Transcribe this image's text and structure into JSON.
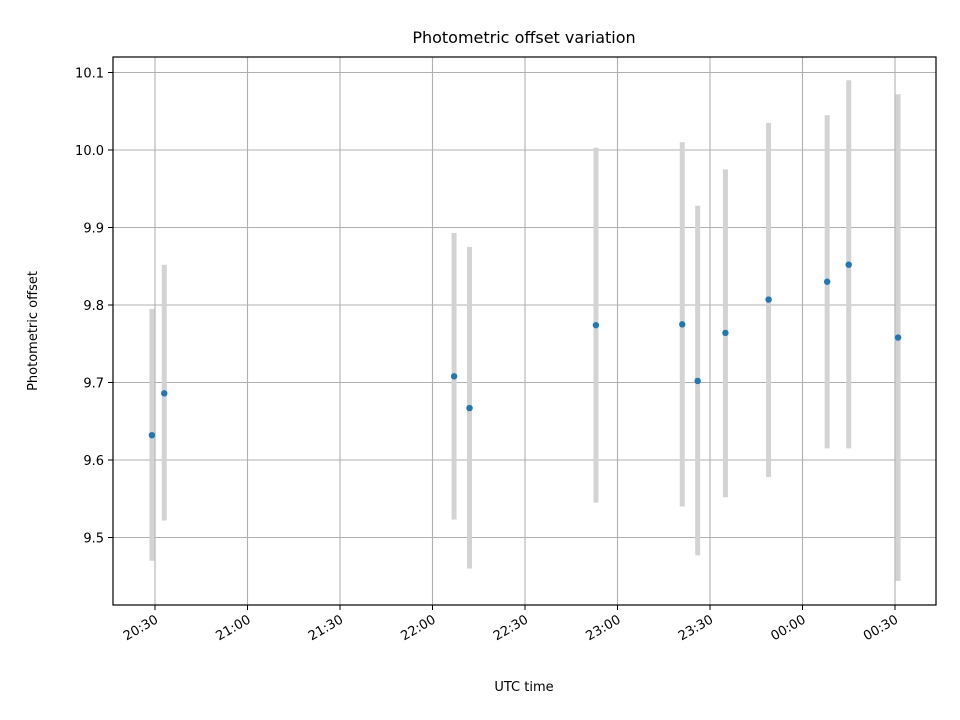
{
  "chart_data": {
    "type": "scatter",
    "title": "Photometric offset variation",
    "xlabel": "UTC time",
    "ylabel": "Photometric offset",
    "x_tick_labels": [
      "20:30",
      "21:00",
      "21:30",
      "22:00",
      "22:30",
      "23:00",
      "23:30",
      "00:00",
      "00:30"
    ],
    "y_tick_values": [
      9.5,
      9.6,
      9.7,
      9.8,
      9.9,
      10.0,
      10.1
    ],
    "y_tick_labels": [
      "9.5",
      "9.6",
      "9.7",
      "9.8",
      "9.9",
      "10.0",
      "10.1"
    ],
    "grid": true,
    "colors": {
      "point": "#1f77b4",
      "errorbar": "#d3d3d3",
      "grid": "#b0b0b0"
    },
    "points": [
      {
        "t": "20:29",
        "y": 9.632,
        "low": 9.47,
        "high": 9.795
      },
      {
        "t": "20:33",
        "y": 9.686,
        "low": 9.522,
        "high": 9.852
      },
      {
        "t": "22:07",
        "y": 9.708,
        "low": 9.523,
        "high": 9.893
      },
      {
        "t": "22:12",
        "y": 9.667,
        "low": 9.46,
        "high": 9.875
      },
      {
        "t": "22:53",
        "y": 9.774,
        "low": 9.545,
        "high": 10.003
      },
      {
        "t": "23:21",
        "y": 9.775,
        "low": 9.54,
        "high": 10.01
      },
      {
        "t": "23:26",
        "y": 9.702,
        "low": 9.477,
        "high": 9.928
      },
      {
        "t": "23:35",
        "y": 9.764,
        "low": 9.552,
        "high": 9.975
      },
      {
        "t": "23:49",
        "y": 9.807,
        "low": 9.578,
        "high": 10.035
      },
      {
        "t": "00:08",
        "y": 9.83,
        "low": 9.615,
        "high": 10.045
      },
      {
        "t": "00:15",
        "y": 9.852,
        "low": 9.615,
        "high": 10.09
      },
      {
        "t": "00:31",
        "y": 9.758,
        "low": 9.444,
        "high": 10.072
      }
    ]
  }
}
